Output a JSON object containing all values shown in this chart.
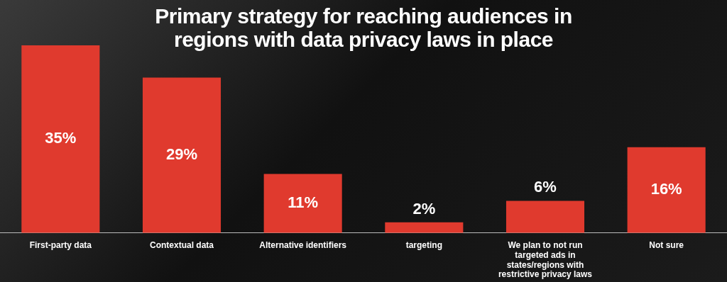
{
  "chart_data": {
    "type": "bar",
    "title": "Primary strategy for reaching audiences in regions with data privacy laws in place",
    "categories": [
      "First-party data",
      "Contextual data",
      "Alternative identifiers",
      "targeting",
      "We plan to not run targeted ads in states/regions with restrictive privacy laws",
      "Not sure"
    ],
    "values": [
      35,
      29,
      11,
      2,
      6,
      16
    ],
    "color": "#e03a2e",
    "data_labels": true,
    "value_labels": [
      "35%",
      "29%",
      "11%",
      "2%",
      "6%",
      "16%"
    ],
    "legend": false
  }
}
